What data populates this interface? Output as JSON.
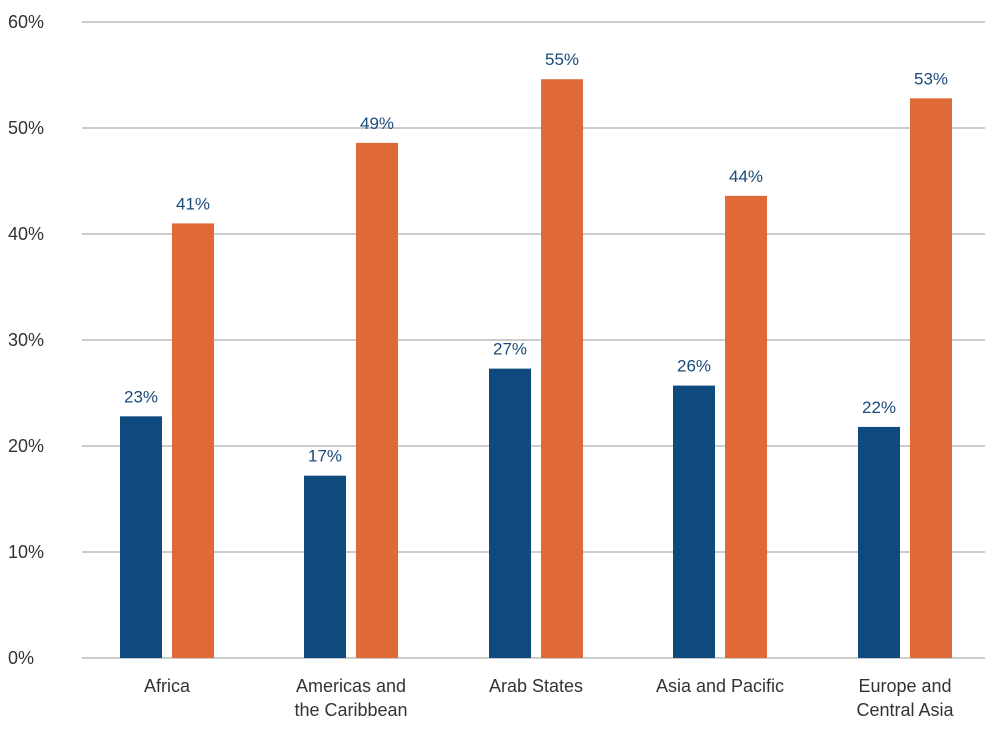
{
  "chart_data": {
    "type": "bar",
    "title": "",
    "xlabel": "",
    "ylabel": "",
    "ylim": [
      0,
      60
    ],
    "y_ticks": [
      0,
      10,
      20,
      30,
      40,
      50,
      60
    ],
    "y_tick_labels": [
      "0%",
      "10%",
      "20%",
      "30%",
      "40%",
      "50%",
      "60%"
    ],
    "grid": true,
    "legend": "none",
    "categories": [
      [
        "Africa"
      ],
      [
        "Americas and",
        "the Caribbean"
      ],
      [
        "Arab States"
      ],
      [
        "Asia and Pacific"
      ],
      [
        "Europe and",
        "Central Asia"
      ]
    ],
    "series": [
      {
        "color": "#0f4a7e",
        "values": [
          23,
          17,
          27,
          26,
          22
        ],
        "bar_values": [
          22.8,
          17.2,
          27.3,
          25.7,
          21.8
        ],
        "labels": [
          "23%",
          "17%",
          "27%",
          "26%",
          "22%"
        ]
      },
      {
        "color": "#e06a37",
        "values": [
          41,
          49,
          55,
          44,
          53
        ],
        "bar_values": [
          41.0,
          48.6,
          54.6,
          43.6,
          52.8
        ],
        "labels": [
          "41%",
          "49%",
          "55%",
          "44%",
          "53%"
        ]
      }
    ]
  }
}
